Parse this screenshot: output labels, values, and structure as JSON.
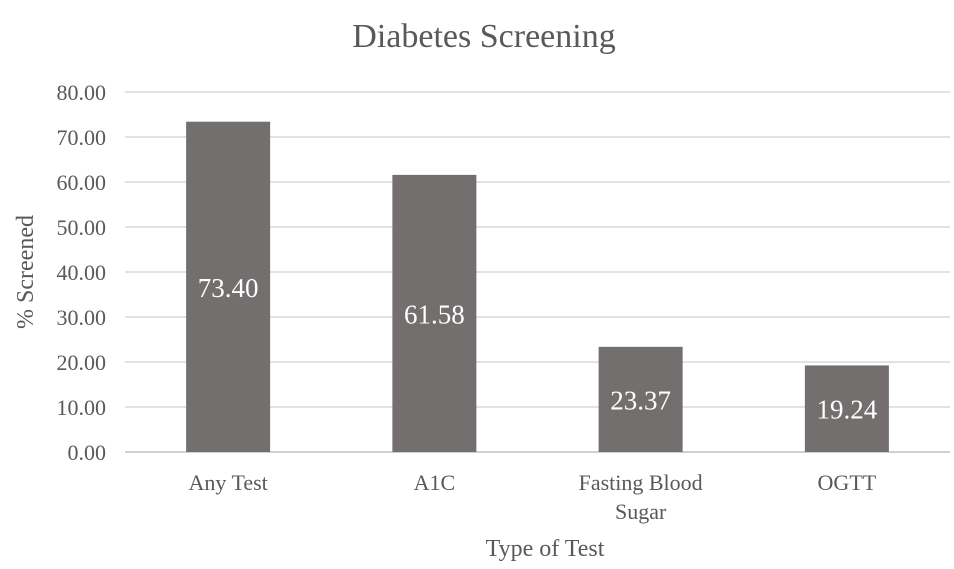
{
  "chart_data": {
    "type": "bar",
    "title": "Diabetes Screening",
    "xlabel": "Type of Test",
    "ylabel": "% Screened",
    "categories": [
      [
        "Any Test"
      ],
      [
        "A1C"
      ],
      [
        "Fasting Blood",
        "Sugar"
      ],
      [
        "OGTT"
      ]
    ],
    "values": [
      73.4,
      61.58,
      23.37,
      19.24
    ],
    "value_labels": [
      "73.40",
      "61.58",
      "23.37",
      "19.24"
    ],
    "ylim": [
      0,
      80
    ],
    "yticks": [
      "0.00",
      "10.00",
      "20.00",
      "30.00",
      "40.00",
      "50.00",
      "60.00",
      "70.00",
      "80.00"
    ],
    "grid": true,
    "legend": "none",
    "colors": {
      "bar": "#736f6e",
      "data_label": "#ffffff",
      "text": "#595959",
      "grid": "#d9d9d9"
    }
  }
}
